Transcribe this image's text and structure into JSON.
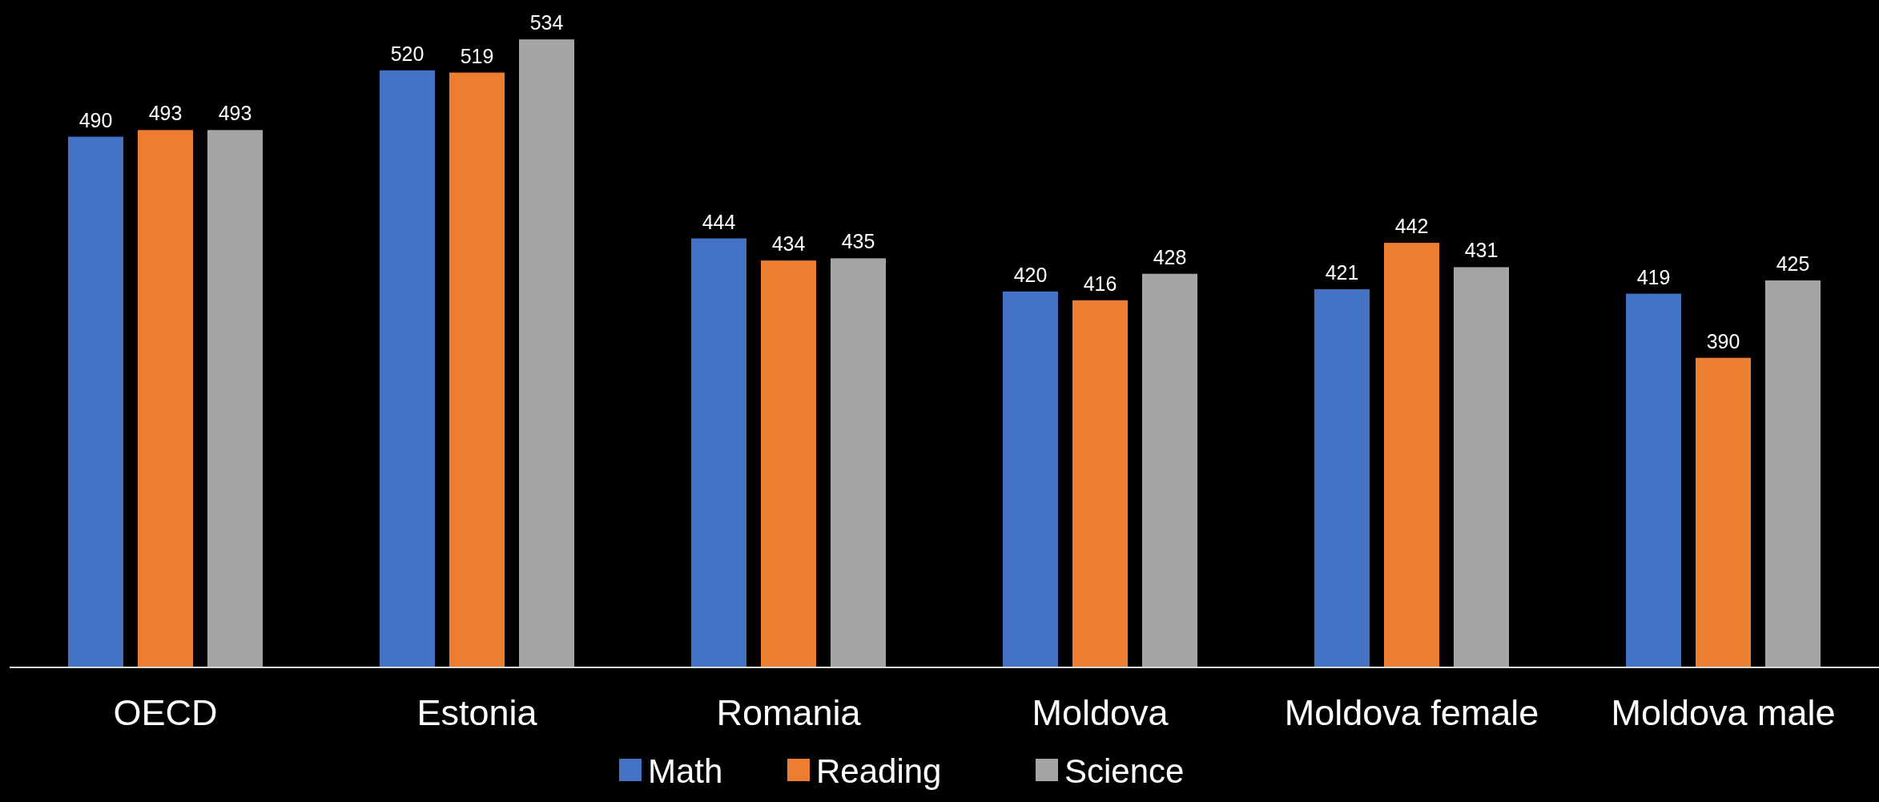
{
  "chart_data": {
    "type": "bar",
    "categories": [
      "OECD",
      "Estonia",
      "Romania",
      "Moldova",
      "Moldova female",
      "Moldova male"
    ],
    "series": [
      {
        "name": "Math",
        "color": "#4472c4",
        "values": [
          490,
          520,
          444,
          420,
          421,
          419
        ]
      },
      {
        "name": "Reading",
        "color": "#ed7d31",
        "values": [
          493,
          519,
          434,
          416,
          442,
          390
        ]
      },
      {
        "name": "Science",
        "color": "#a5a5a5",
        "values": [
          493,
          534,
          435,
          428,
          431,
          425
        ]
      }
    ],
    "ylim": [
      250,
      550
    ],
    "tick_labels": "x",
    "data_labels": true,
    "grid": false,
    "legend": "bottom"
  }
}
